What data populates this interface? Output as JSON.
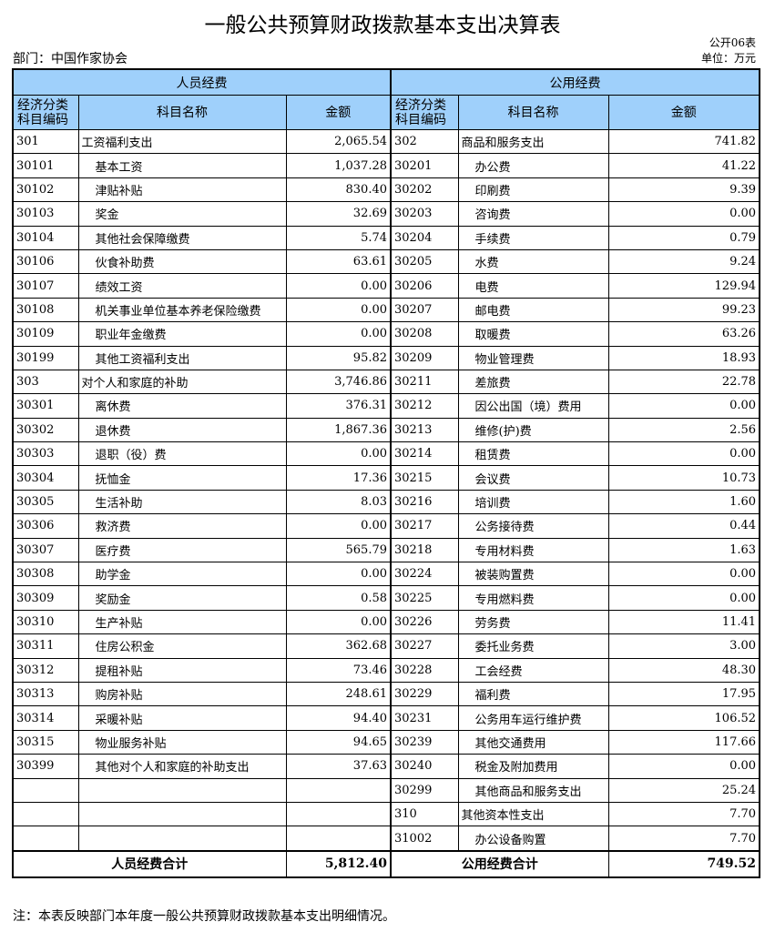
{
  "title": "一般公共预算财政拨款基本支出决算表",
  "form_no": "公开06表",
  "department": "部门：中国作家协会",
  "unit": "单位：万元",
  "headers": {
    "personnel": "人员经费",
    "public": "公用经费",
    "code": "经济分类科目编码",
    "code_line1": "经济分类",
    "code_line2": "科目编码",
    "name": "科目名称",
    "amount": "金额"
  },
  "left_rows": [
    {
      "code": "301",
      "name": "工资福利支出",
      "amount": "2,065.54",
      "indent": false
    },
    {
      "code": "30101",
      "name": "基本工资",
      "amount": "1,037.28",
      "indent": true
    },
    {
      "code": "30102",
      "name": "津贴补贴",
      "amount": "830.40",
      "indent": true
    },
    {
      "code": "30103",
      "name": "奖金",
      "amount": "32.69",
      "indent": true
    },
    {
      "code": "30104",
      "name": "其他社会保障缴费",
      "amount": "5.74",
      "indent": true
    },
    {
      "code": "30106",
      "name": "伙食补助费",
      "amount": "63.61",
      "indent": true
    },
    {
      "code": "30107",
      "name": "绩效工资",
      "amount": "0.00",
      "indent": true
    },
    {
      "code": "30108",
      "name": "机关事业单位基本养老保险缴费",
      "amount": "0.00",
      "indent": true
    },
    {
      "code": "30109",
      "name": "职业年金缴费",
      "amount": "0.00",
      "indent": true
    },
    {
      "code": "30199",
      "name": "其他工资福利支出",
      "amount": "95.82",
      "indent": true
    },
    {
      "code": "303",
      "name": "对个人和家庭的补助",
      "amount": "3,746.86",
      "indent": false
    },
    {
      "code": "30301",
      "name": "离休费",
      "amount": "376.31",
      "indent": true
    },
    {
      "code": "30302",
      "name": "退休费",
      "amount": "1,867.36",
      "indent": true
    },
    {
      "code": "30303",
      "name": "退职（役）费",
      "amount": "0.00",
      "indent": true
    },
    {
      "code": "30304",
      "name": "抚恤金",
      "amount": "17.36",
      "indent": true
    },
    {
      "code": "30305",
      "name": "生活补助",
      "amount": "8.03",
      "indent": true
    },
    {
      "code": "30306",
      "name": "救济费",
      "amount": "0.00",
      "indent": true
    },
    {
      "code": "30307",
      "name": "医疗费",
      "amount": "565.79",
      "indent": true
    },
    {
      "code": "30308",
      "name": "助学金",
      "amount": "0.00",
      "indent": true
    },
    {
      "code": "30309",
      "name": "奖励金",
      "amount": "0.58",
      "indent": true
    },
    {
      "code": "30310",
      "name": "生产补贴",
      "amount": "0.00",
      "indent": true
    },
    {
      "code": "30311",
      "name": "住房公积金",
      "amount": "362.68",
      "indent": true
    },
    {
      "code": "30312",
      "name": "提租补贴",
      "amount": "73.46",
      "indent": true
    },
    {
      "code": "30313",
      "name": "购房补贴",
      "amount": "248.61",
      "indent": true
    },
    {
      "code": "30314",
      "name": "采暖补贴",
      "amount": "94.40",
      "indent": true
    },
    {
      "code": "30315",
      "name": "物业服务补贴",
      "amount": "94.65",
      "indent": true
    },
    {
      "code": "30399",
      "name": "其他对个人和家庭的补助支出",
      "amount": "37.63",
      "indent": true
    },
    {
      "code": "",
      "name": "",
      "amount": "",
      "indent": false
    },
    {
      "code": "",
      "name": "",
      "amount": "",
      "indent": false
    },
    {
      "code": "",
      "name": "",
      "amount": "",
      "indent": false
    }
  ],
  "right_rows": [
    {
      "code": "302",
      "name": "商品和服务支出",
      "amount": "741.82",
      "indent": false
    },
    {
      "code": "30201",
      "name": "办公费",
      "amount": "41.22",
      "indent": true
    },
    {
      "code": "30202",
      "name": "印刷费",
      "amount": "9.39",
      "indent": true
    },
    {
      "code": "30203",
      "name": "咨询费",
      "amount": "0.00",
      "indent": true
    },
    {
      "code": "30204",
      "name": "手续费",
      "amount": "0.79",
      "indent": true
    },
    {
      "code": "30205",
      "name": "水费",
      "amount": "9.24",
      "indent": true
    },
    {
      "code": "30206",
      "name": "电费",
      "amount": "129.94",
      "indent": true
    },
    {
      "code": "30207",
      "name": "邮电费",
      "amount": "99.23",
      "indent": true
    },
    {
      "code": "30208",
      "name": "取暖费",
      "amount": "63.26",
      "indent": true
    },
    {
      "code": "30209",
      "name": "物业管理费",
      "amount": "18.93",
      "indent": true
    },
    {
      "code": "30211",
      "name": "差旅费",
      "amount": "22.78",
      "indent": true
    },
    {
      "code": "30212",
      "name": "因公出国（境）费用",
      "amount": "0.00",
      "indent": true
    },
    {
      "code": "30213",
      "name": "维修(护)费",
      "amount": "2.56",
      "indent": true
    },
    {
      "code": "30214",
      "name": "租赁费",
      "amount": "0.00",
      "indent": true
    },
    {
      "code": "30215",
      "name": "会议费",
      "amount": "10.73",
      "indent": true
    },
    {
      "code": "30216",
      "name": "培训费",
      "amount": "1.60",
      "indent": true
    },
    {
      "code": "30217",
      "name": "公务接待费",
      "amount": "0.44",
      "indent": true
    },
    {
      "code": "30218",
      "name": "专用材料费",
      "amount": "1.63",
      "indent": true
    },
    {
      "code": "30224",
      "name": "被装购置费",
      "amount": "0.00",
      "indent": true
    },
    {
      "code": "30225",
      "name": "专用燃料费",
      "amount": "0.00",
      "indent": true
    },
    {
      "code": "30226",
      "name": "劳务费",
      "amount": "11.41",
      "indent": true
    },
    {
      "code": "30227",
      "name": "委托业务费",
      "amount": "3.00",
      "indent": true
    },
    {
      "code": "30228",
      "name": "工会经费",
      "amount": "48.30",
      "indent": true
    },
    {
      "code": "30229",
      "name": "福利费",
      "amount": "17.95",
      "indent": true
    },
    {
      "code": "30231",
      "name": "公务用车运行维护费",
      "amount": "106.52",
      "indent": true
    },
    {
      "code": "30239",
      "name": "其他交通费用",
      "amount": "117.66",
      "indent": true
    },
    {
      "code": "30240",
      "name": "税金及附加费用",
      "amount": "0.00",
      "indent": true
    },
    {
      "code": "30299",
      "name": "其他商品和服务支出",
      "amount": "25.24",
      "indent": true
    },
    {
      "code": "310",
      "name": "其他资本性支出",
      "amount": "7.70",
      "indent": false
    },
    {
      "code": "31002",
      "name": "办公设备购置",
      "amount": "7.70",
      "indent": true
    }
  ],
  "totals": {
    "personnel_label": "人员经费合计",
    "personnel_amount": "5,812.40",
    "public_label": "公用经费合计",
    "public_amount": "749.52"
  },
  "note": "注：本表反映部门本年度一般公共预算财政拨款基本支出明细情况。",
  "colors": {
    "header_bg": "#9fd0fb",
    "border": "#000000"
  }
}
